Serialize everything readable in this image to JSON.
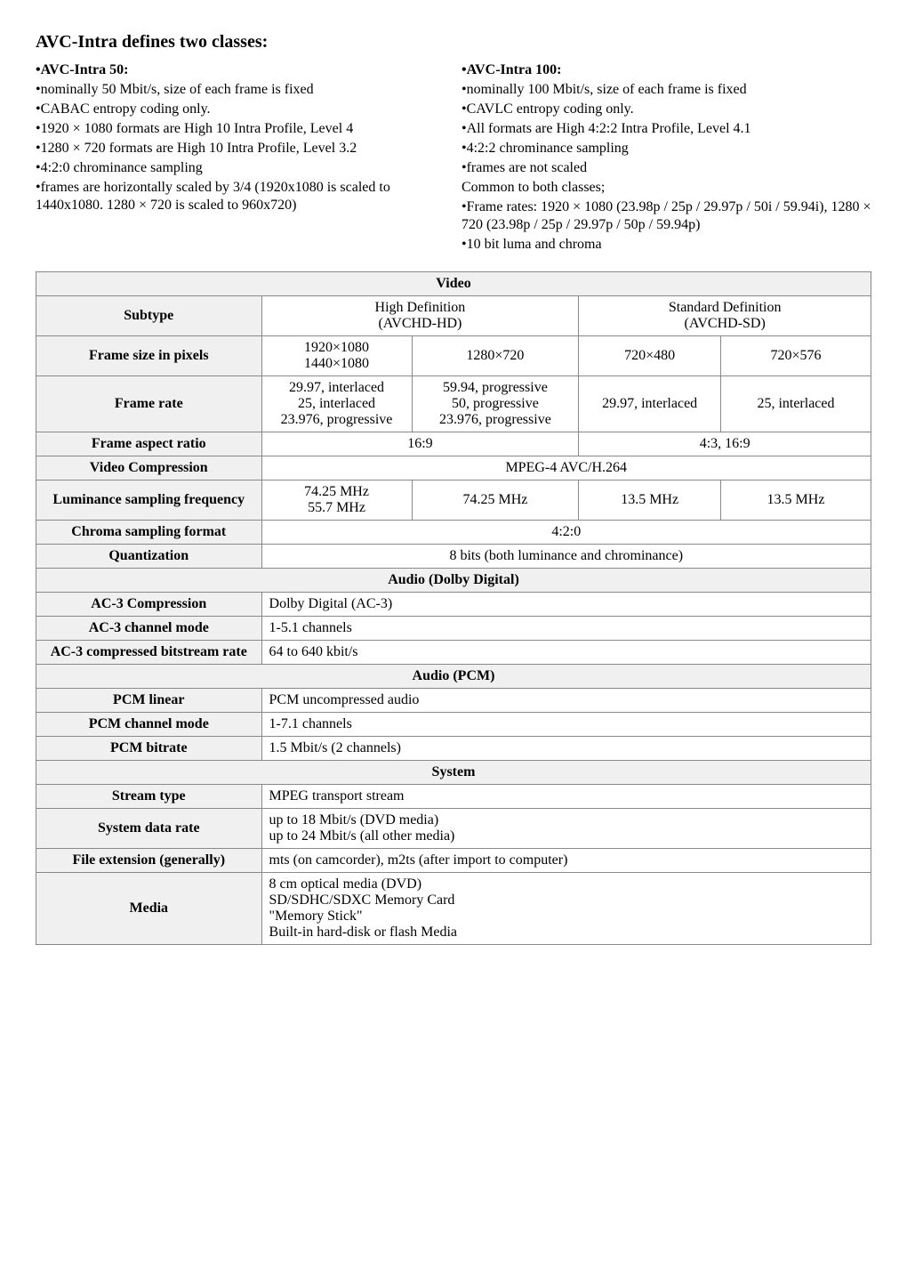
{
  "title": "AVC-Intra defines two classes:",
  "left": {
    "header": "•AVC-Intra 50:",
    "lines": [
      "•nominally 50 Mbit/s, size of each frame is fixed",
      "•CABAC entropy coding only.",
      "•1920 × 1080 formats are High 10 Intra Profile, Level 4",
      "•1280 × 720 formats are High 10 Intra Profile, Level 3.2",
      "•4:2:0 chrominance sampling",
      "•frames are horizontally scaled by 3/4 (1920x1080 is scaled to 1440x1080. 1280 × 720 is scaled to 960x720)"
    ]
  },
  "right": {
    "header": "•AVC-Intra 100:",
    "lines": [
      "•nominally 100 Mbit/s, size of each frame is fixed",
      "•CAVLC entropy coding only.",
      "•All formats are High 4:2:2 Intra Profile, Level 4.1",
      "•4:2:2 chrominance sampling",
      "•frames are not scaled",
      "Common to both classes;",
      "",
      "•Frame rates: 1920 × 1080 (23.98p / 25p / 29.97p / 50i / 59.94i), 1280 × 720 (23.98p / 25p / 29.97p / 50p / 59.94p)",
      "•10 bit luma and chroma"
    ]
  },
  "table": {
    "videoHeader": "Video",
    "subtype": "Subtype",
    "hd": "High Definition\n(AVCHD-HD)",
    "sd": "Standard Definition\n(AVCHD-SD)",
    "frameSizeLabel": "Frame size in pixels",
    "fs1": "1920×1080\n1440×1080",
    "fs2": "1280×720",
    "fs3": "720×480",
    "fs4": "720×576",
    "frameRateLabel": "Frame rate",
    "fr1": "29.97, interlaced\n25, interlaced\n23.976, progressive",
    "fr2": "59.94, progressive\n50, progressive\n23.976, progressive",
    "fr3": "29.97, interlaced",
    "fr4": "25, interlaced",
    "aspectLabel": "Frame aspect ratio",
    "aspect1": "16:9",
    "aspect2": "4:3, 16:9",
    "vcompLabel": "Video Compression",
    "vcomp": "MPEG-4 AVC/H.264",
    "lumLabel": "Luminance sampling frequency",
    "lum1": "74.25 MHz\n55.7 MHz",
    "lum2": "74.25 MHz",
    "lum3": "13.5 MHz",
    "lum4": "13.5 MHz",
    "chromaLabel": "Chroma sampling format",
    "chroma": "4:2:0",
    "quantLabel": "Quantization",
    "quant": "8 bits (both luminance and chrominance)",
    "audioDolbyHeader": "Audio (Dolby Digital)",
    "ac3compLabel": "AC-3 Compression",
    "ac3comp": "Dolby Digital (AC-3)",
    "ac3chLabel": "AC-3 channel mode",
    "ac3ch": "1-5.1 channels",
    "ac3brLabel": "AC-3 compressed bitstream rate",
    "ac3br": "64 to 640 kbit/s",
    "audioPcmHeader": "Audio (PCM)",
    "pcmlinLabel": "PCM linear",
    "pcmlin": "PCM uncompressed audio",
    "pcmchLabel": "PCM channel mode",
    "pcmch": "1-7.1 channels",
    "pcmbrLabel": "PCM bitrate",
    "pcmbr": "1.5 Mbit/s (2 channels)",
    "systemHeader": "System",
    "streamLabel": "Stream type",
    "stream": "MPEG transport stream",
    "sdrLabel": "System data rate",
    "sdr": "up to 18 Mbit/s (DVD media)\nup to 24 Mbit/s (all other media)",
    "fextLabel": "File extension (generally)",
    "fext": "mts (on camcorder), m2ts (after import to computer)",
    "mediaLabel": "Media",
    "media": "8 cm optical media (DVD)\nSD/SDHC/SDXC Memory Card\n\"Memory Stick\"\nBuilt-in hard-disk or flash Media"
  }
}
